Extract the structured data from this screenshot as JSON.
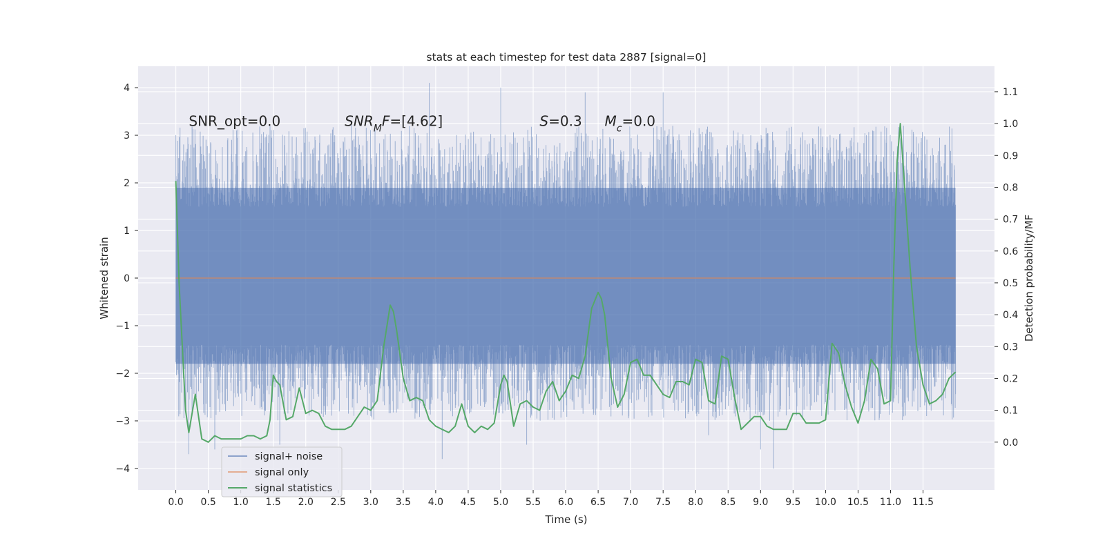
{
  "chart_data": {
    "type": "line",
    "title": "stats at each timestep for test data 2887 [signal=0]",
    "xlabel": "Time (s)",
    "ylabel_left": "Whitened strain",
    "ylabel_right": "Detection probability/MF",
    "xlim": [
      -0.58,
      12.6
    ],
    "ylim_left": [
      -4.45,
      4.45
    ],
    "ylim_right": [
      -0.15,
      1.18
    ],
    "x_ticks": [
      0.0,
      0.5,
      1.0,
      1.5,
      2.0,
      2.5,
      3.0,
      3.5,
      4.0,
      4.5,
      5.0,
      5.5,
      6.0,
      6.5,
      7.0,
      7.5,
      8.0,
      8.5,
      9.0,
      9.5,
      10.0,
      10.5,
      11.0,
      11.5
    ],
    "x_tick_labels": [
      "0.0",
      "0.5",
      "1.0",
      "1.5",
      "2.0",
      "2.5",
      "3.0",
      "3.5",
      "4.0",
      "4.5",
      "5.0",
      "5.5",
      "6.0",
      "6.5",
      "7.0",
      "7.5",
      "8.0",
      "8.5",
      "9.0",
      "9.5",
      "10.0",
      "10.5",
      "11.0",
      "11.5"
    ],
    "y_left_ticks": [
      -4,
      -3,
      -2,
      -1,
      0,
      1,
      2,
      3,
      4
    ],
    "y_left_tick_labels": [
      "−4",
      "−3",
      "−2",
      "−1",
      "0",
      "1",
      "2",
      "3",
      "4"
    ],
    "y_right_ticks": [
      0.0,
      0.1,
      0.2,
      0.3,
      0.4,
      0.5,
      0.6,
      0.7,
      0.8,
      0.9,
      1.0,
      1.1
    ],
    "y_right_tick_labels": [
      "0.0",
      "0.1",
      "0.2",
      "0.3",
      "0.4",
      "0.5",
      "0.6",
      "0.7",
      "0.8",
      "0.9",
      "1.0",
      "1.1"
    ],
    "grid": true,
    "legend_position": "lower-left",
    "annotations": [
      {
        "text": "SNR_opt=0.0",
        "x": 0.2,
        "y": 3.3
      },
      {
        "text": "SNR_MF=[4.62]",
        "x": 2.6,
        "y": 3.3
      },
      {
        "text": "S=0.3",
        "x": 5.6,
        "y": 3.3
      },
      {
        "text": "M_c=0.0",
        "x": 6.6,
        "y": 3.3
      }
    ],
    "series": [
      {
        "name": "signal+ noise",
        "axis": "left",
        "color": "#4c72b0",
        "style": "dense noise band",
        "x_range": [
          0.0,
          12.0
        ],
        "core_range": [
          -1.8,
          1.9
        ],
        "extremes": [
          [
            0.0,
            3.0
          ],
          [
            0.2,
            -3.7
          ],
          [
            0.6,
            -3.6
          ],
          [
            1.6,
            -3.5
          ],
          [
            2.7,
            3.3
          ],
          [
            3.9,
            4.1
          ],
          [
            4.1,
            -3.8
          ],
          [
            5.0,
            4.0
          ],
          [
            5.4,
            -3.5
          ],
          [
            6.3,
            3.9
          ],
          [
            7.5,
            3.9
          ],
          [
            8.2,
            -3.3
          ],
          [
            9.0,
            -3.6
          ],
          [
            9.2,
            -4.0
          ],
          [
            11.2,
            3.2
          ]
        ]
      },
      {
        "name": "signal only",
        "axis": "left",
        "color": "#dd8452",
        "x": [
          0.0,
          12.0
        ],
        "values": [
          0.0,
          0.0
        ]
      },
      {
        "name": "signal statistics",
        "axis": "right",
        "color": "#55a868",
        "x": [
          0.0,
          0.05,
          0.1,
          0.15,
          0.2,
          0.3,
          0.4,
          0.5,
          0.6,
          0.7,
          0.8,
          0.9,
          1.0,
          1.1,
          1.2,
          1.3,
          1.4,
          1.45,
          1.5,
          1.55,
          1.6,
          1.7,
          1.8,
          1.9,
          2.0,
          2.1,
          2.2,
          2.3,
          2.4,
          2.5,
          2.6,
          2.7,
          2.8,
          2.9,
          3.0,
          3.1,
          3.2,
          3.3,
          3.35,
          3.4,
          3.5,
          3.6,
          3.7,
          3.8,
          3.9,
          4.0,
          4.1,
          4.2,
          4.3,
          4.4,
          4.5,
          4.6,
          4.7,
          4.8,
          4.9,
          5.0,
          5.05,
          5.1,
          5.2,
          5.3,
          5.4,
          5.5,
          5.6,
          5.7,
          5.8,
          5.9,
          6.0,
          6.1,
          6.2,
          6.3,
          6.4,
          6.5,
          6.55,
          6.6,
          6.7,
          6.8,
          6.9,
          7.0,
          7.1,
          7.2,
          7.3,
          7.4,
          7.5,
          7.6,
          7.7,
          7.8,
          7.9,
          8.0,
          8.1,
          8.2,
          8.3,
          8.4,
          8.5,
          8.6,
          8.7,
          8.8,
          8.9,
          9.0,
          9.1,
          9.2,
          9.3,
          9.4,
          9.5,
          9.6,
          9.7,
          9.8,
          9.9,
          10.0,
          10.1,
          10.2,
          10.3,
          10.4,
          10.5,
          10.6,
          10.7,
          10.8,
          10.9,
          11.0,
          11.05,
          11.1,
          11.15,
          11.2,
          11.3,
          11.4,
          11.5,
          11.6,
          11.7,
          11.8,
          11.9,
          12.0
        ],
        "values": [
          0.82,
          0.5,
          0.3,
          0.1,
          0.03,
          0.15,
          0.01,
          0.0,
          0.02,
          0.01,
          0.01,
          0.01,
          0.01,
          0.02,
          0.02,
          0.01,
          0.02,
          0.07,
          0.21,
          0.19,
          0.18,
          0.07,
          0.08,
          0.17,
          0.09,
          0.1,
          0.09,
          0.05,
          0.04,
          0.04,
          0.04,
          0.05,
          0.08,
          0.11,
          0.1,
          0.13,
          0.3,
          0.43,
          0.41,
          0.35,
          0.2,
          0.13,
          0.14,
          0.13,
          0.07,
          0.05,
          0.04,
          0.03,
          0.05,
          0.12,
          0.05,
          0.03,
          0.05,
          0.04,
          0.06,
          0.18,
          0.21,
          0.19,
          0.05,
          0.12,
          0.13,
          0.11,
          0.1,
          0.16,
          0.19,
          0.13,
          0.16,
          0.21,
          0.2,
          0.27,
          0.42,
          0.47,
          0.45,
          0.4,
          0.2,
          0.11,
          0.15,
          0.25,
          0.26,
          0.21,
          0.21,
          0.18,
          0.15,
          0.14,
          0.19,
          0.19,
          0.18,
          0.26,
          0.25,
          0.13,
          0.12,
          0.27,
          0.26,
          0.14,
          0.04,
          0.06,
          0.08,
          0.08,
          0.05,
          0.04,
          0.04,
          0.04,
          0.09,
          0.09,
          0.06,
          0.06,
          0.06,
          0.07,
          0.31,
          0.28,
          0.18,
          0.11,
          0.06,
          0.13,
          0.26,
          0.23,
          0.12,
          0.13,
          0.55,
          0.88,
          1.0,
          0.85,
          0.55,
          0.3,
          0.18,
          0.12,
          0.13,
          0.15,
          0.2,
          0.22
        ]
      }
    ]
  }
}
